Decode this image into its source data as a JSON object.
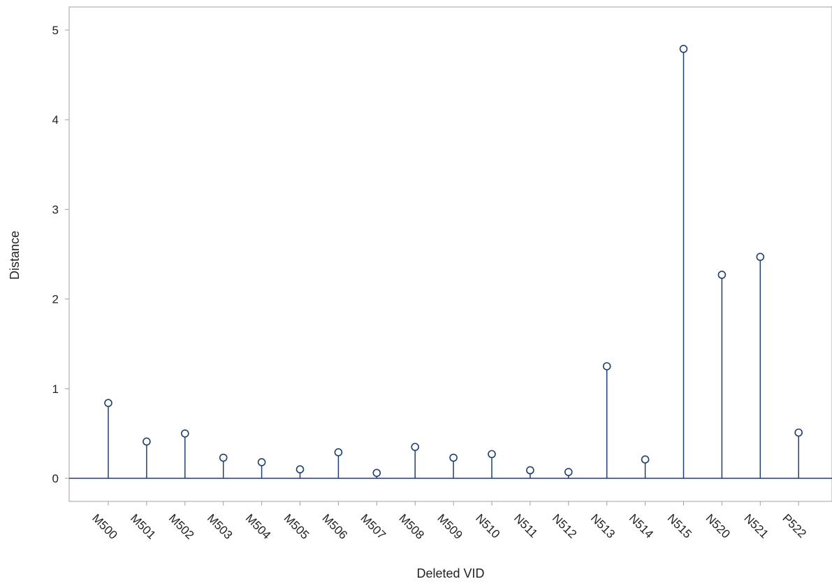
{
  "chart_data": {
    "type": "needle",
    "title": "",
    "xlabel": "Deleted VID",
    "ylabel": "Distance",
    "ylim": [
      -0.25,
      5.25
    ],
    "yticks": [
      0,
      1,
      2,
      3,
      4,
      5
    ],
    "grid": false,
    "legend": "none",
    "baseline": 0,
    "colors": {
      "needle": "#1f3f6e",
      "marker": "#1f3f6e",
      "frame": "#a0a0a0",
      "text": "#222222"
    },
    "categories": [
      "M500",
      "M501",
      "M502",
      "M503",
      "M504",
      "M505",
      "M506",
      "M507",
      "M508",
      "M509",
      "N510",
      "N511",
      "N512",
      "N513",
      "N514",
      "N515",
      "N520",
      "N521",
      "P522"
    ],
    "values": [
      0.84,
      0.41,
      0.5,
      0.23,
      0.18,
      0.1,
      0.29,
      0.06,
      0.35,
      0.23,
      0.27,
      0.09,
      0.07,
      1.25,
      0.21,
      4.79,
      2.27,
      2.47,
      0.51
    ]
  }
}
